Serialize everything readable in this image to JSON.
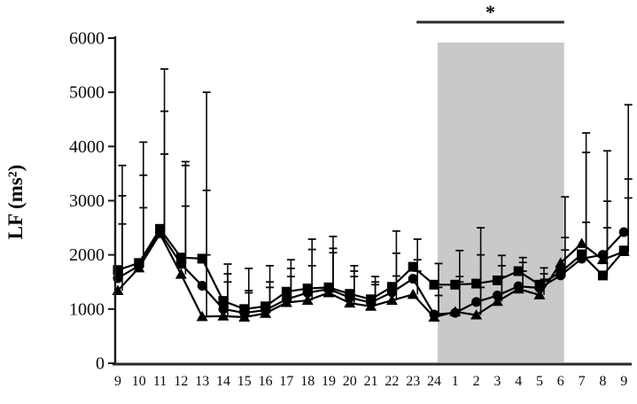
{
  "figure": {
    "background": "#ffffff",
    "accent_black": "#0a0a0a"
  },
  "chart_data": {
    "type": "line",
    "title": "",
    "xlabel": "",
    "ylabel": "LF (ms²)",
    "ylim": [
      0,
      6000
    ],
    "y_ticks": [
      0,
      1000,
      2000,
      3000,
      4000,
      5000,
      6000
    ],
    "grid": false,
    "legend": "none",
    "x_tick_labels": [
      "9",
      "10",
      "11",
      "12",
      "13",
      "14",
      "15",
      "16",
      "17",
      "18",
      "19",
      "20",
      "21",
      "22",
      "23",
      "24",
      "1",
      "2",
      "3",
      "4",
      "5",
      "6",
      "7",
      "8",
      "9"
    ],
    "series": [
      {
        "name": "square-series",
        "marker": "square",
        "color": "#000000",
        "values": [
          1720,
          1850,
          2480,
          1950,
          1930,
          1150,
          1000,
          1050,
          1320,
          1380,
          1400,
          1280,
          1180,
          1410,
          1780,
          1450,
          1450,
          1470,
          1530,
          1700,
          1450,
          1680,
          2010,
          1620,
          2080
        ],
        "err_top": [
          3650,
          4080,
          5430,
          3720,
          5000,
          1830,
          1750,
          1800,
          1910,
          2290,
          2340,
          1800,
          1600,
          2440,
          2290,
          1840,
          2080,
          2500,
          1990,
          1950,
          1760,
          3070,
          4250,
          3920,
          4770
        ]
      },
      {
        "name": "circle-series",
        "marker": "circle",
        "color": "#000000",
        "values": [
          1570,
          1800,
          2420,
          1830,
          1430,
          1000,
          930,
          980,
          1180,
          1300,
          1370,
          1210,
          1120,
          1310,
          1560,
          900,
          930,
          1130,
          1250,
          1420,
          1390,
          1620,
          1930,
          2000,
          2420
        ],
        "err_top": [
          3090,
          3470,
          4650,
          3650,
          3190,
          1650,
          1340,
          1500,
          1750,
          2100,
          2120,
          1700,
          1500,
          2030,
          1910,
          1400,
          1600,
          2000,
          1800,
          1860,
          1650,
          2320,
          3890,
          2990,
          3400
        ]
      },
      {
        "name": "triangle-series",
        "marker": "triangle",
        "color": "#000000",
        "values": [
          1340,
          1760,
          2390,
          1640,
          860,
          870,
          850,
          920,
          1120,
          1160,
          1300,
          1110,
          1050,
          1160,
          1270,
          850,
          950,
          890,
          1140,
          1370,
          1260,
          1850,
          2210,
          1910,
          2060
        ],
        "err_top": [
          2570,
          2870,
          3860,
          2900,
          2000,
          1500,
          1300,
          1400,
          1600,
          1800,
          2040,
          1600,
          1450,
          1610,
          1700,
          1250,
          1500,
          1400,
          1600,
          1700,
          1550,
          2090,
          2600,
          2500,
          3050
        ]
      }
    ],
    "shaded_region": {
      "start_label": "24",
      "end_label": "6",
      "color": "#c9c9c9"
    },
    "significance": {
      "start_label": "23",
      "end_label": "6",
      "marker": "*",
      "line_color": "#2e2e2e"
    }
  }
}
